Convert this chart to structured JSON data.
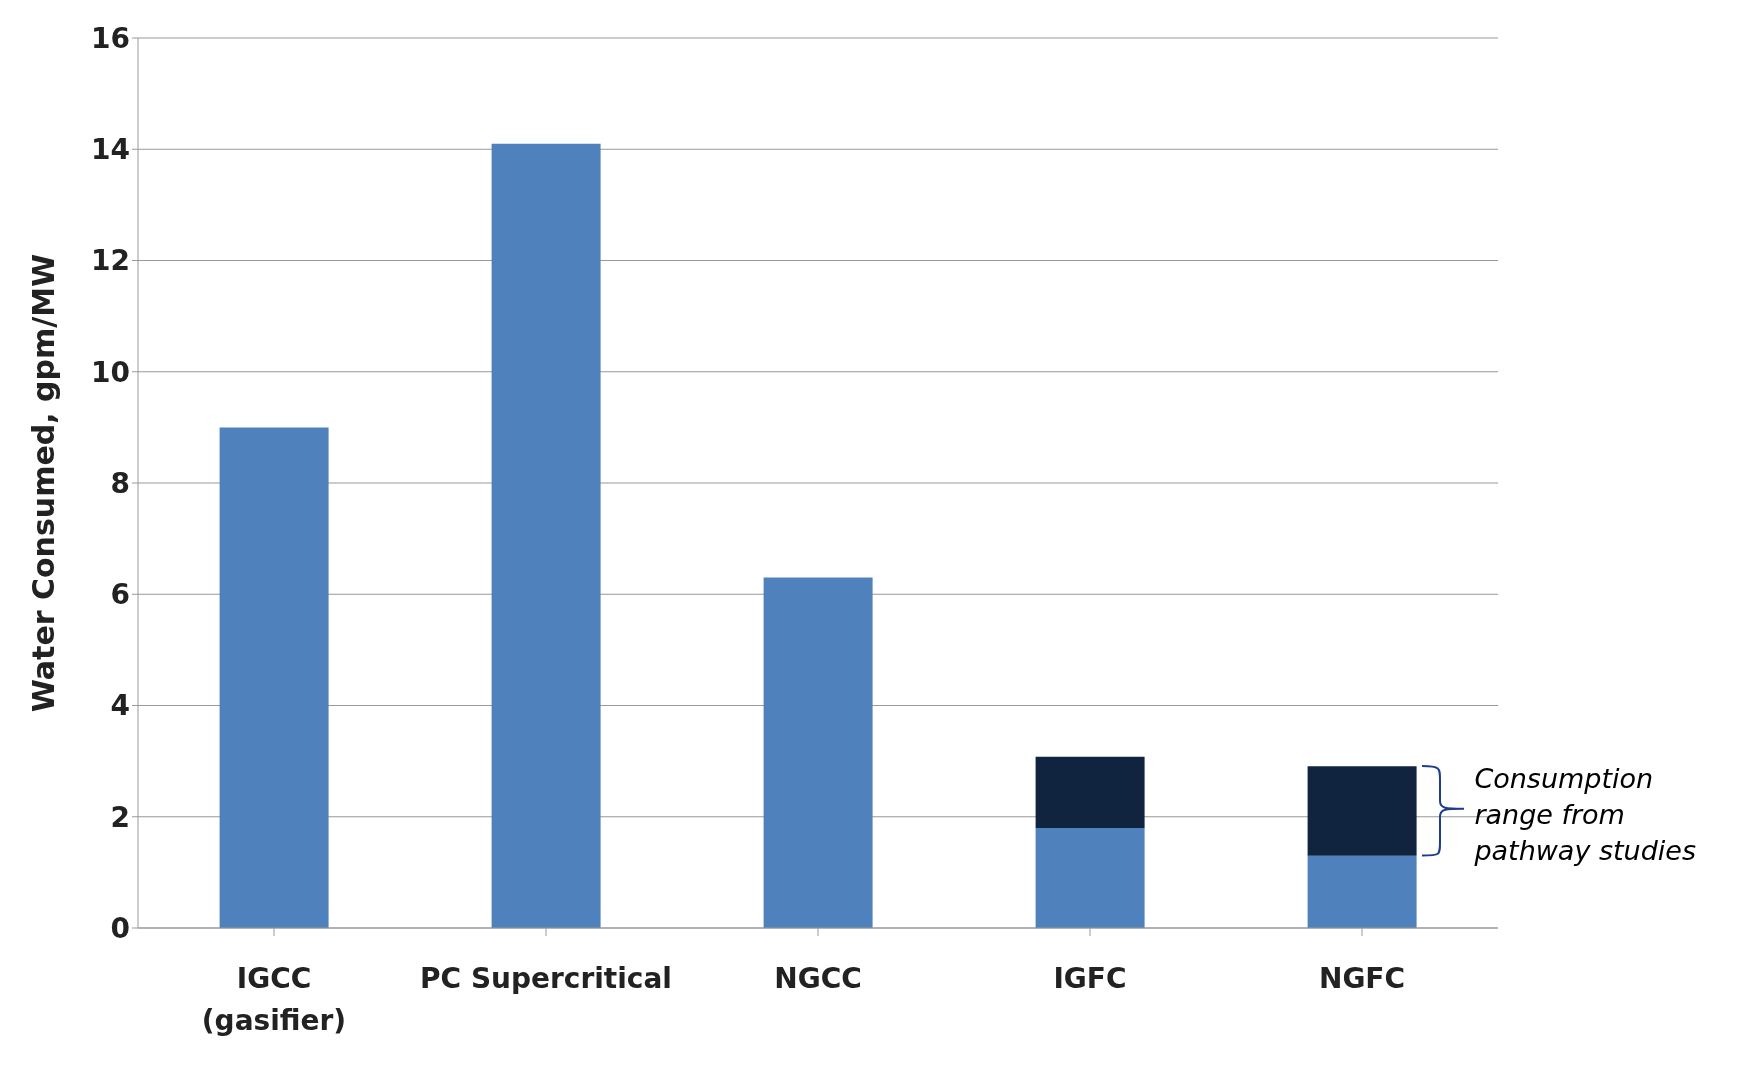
{
  "chart_data": {
    "type": "bar",
    "ylabel": "Water Consumed, gpm/MW",
    "categories": [
      "IGCC\n(gasifier)",
      "PC Supercritical",
      "NGCC",
      "IGFC",
      "NGFC"
    ],
    "stacked": true,
    "series": [
      {
        "color": "#4f81bd",
        "values": [
          9.0,
          14.1,
          6.3,
          1.8,
          1.3
        ]
      },
      {
        "color": "#10243f",
        "values": [
          null,
          null,
          null,
          1.28,
          1.61
        ]
      }
    ],
    "ylim": [
      0,
      16
    ],
    "yticks": [
      0,
      2,
      4,
      6,
      8,
      10,
      12,
      14,
      16
    ],
    "grid": "y",
    "annotations": [
      "Consumption range from pathway studies"
    ]
  }
}
